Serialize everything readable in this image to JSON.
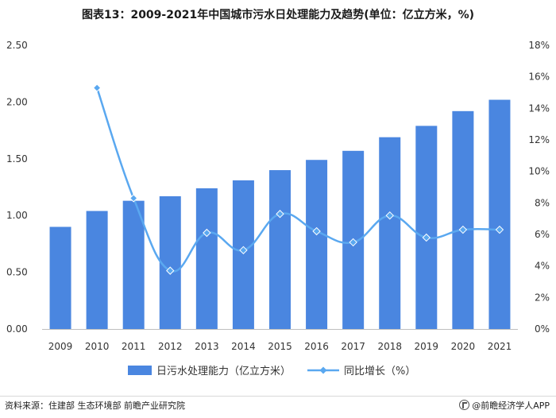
{
  "title": "图表13：2009-2021年中国城市污水日处理能力及趋势(单位：亿立方米，%)",
  "source_text": "资料来源：住建部 生态环境部 前瞻产业研究院",
  "brand_text": "@前瞻经济学人APP",
  "chart_data": {
    "type": "bar+line",
    "categories": [
      "2009",
      "2010",
      "2011",
      "2012",
      "2013",
      "2014",
      "2015",
      "2016",
      "2017",
      "2018",
      "2019",
      "2020",
      "2021"
    ],
    "series": [
      {
        "name": "日污水处理能力（亿立方米）",
        "type": "bar",
        "axis": "left",
        "color": "#4a86e0",
        "values": [
          0.9,
          1.04,
          1.13,
          1.17,
          1.24,
          1.31,
          1.4,
          1.49,
          1.57,
          1.69,
          1.79,
          1.92,
          2.02
        ]
      },
      {
        "name": "同比增长（%）",
        "type": "line",
        "axis": "right",
        "color": "#5aa8f0",
        "marker": "diamond",
        "values": [
          null,
          15.3,
          8.3,
          3.7,
          6.1,
          5.0,
          7.3,
          6.2,
          5.5,
          7.2,
          5.8,
          6.3,
          6.3
        ]
      }
    ],
    "y_left": {
      "min": 0,
      "max": 2.5,
      "ticks": [
        "0.00",
        "0.50",
        "1.00",
        "1.50",
        "2.00",
        "2.50"
      ]
    },
    "y_right": {
      "min": 0,
      "max": 18,
      "ticks": [
        "0%",
        "2%",
        "4%",
        "6%",
        "8%",
        "10%",
        "12%",
        "14%",
        "16%",
        "18%"
      ]
    },
    "grid": false,
    "legend_position": "bottom"
  }
}
